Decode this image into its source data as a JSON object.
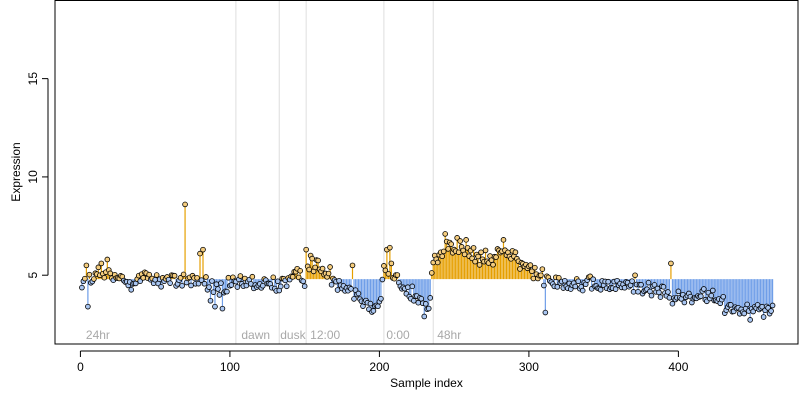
{
  "chart_data": {
    "type": "scatter",
    "xlabel": "Sample index",
    "ylabel": "Expression",
    "xlim": [
      -17,
      480
    ],
    "ylim": [
      1.5,
      19
    ],
    "x_ticks": [
      0,
      100,
      200,
      300,
      400
    ],
    "y_ticks": [
      5,
      10,
      15
    ],
    "baseline": 4.8,
    "colors": {
      "above_segment": "#e69f00",
      "below_segment": "#6f9ee8",
      "above_point": "#f5cd7e",
      "below_point": "#a9c6f2",
      "point_edge": "#000000",
      "divider": "#dedede",
      "frame": "#000000",
      "region_label": "#a8a8a8"
    },
    "region_boundaries": [
      104,
      133,
      151,
      203,
      236
    ],
    "regions": [
      {
        "label": "24hr",
        "x": 3
      },
      {
        "label": "dawn",
        "x": 107
      },
      {
        "label": "dusk",
        "x": 133
      },
      {
        "label": "12:00",
        "x": 153
      },
      {
        "label": "0:00",
        "x": 204
      },
      {
        "label": "48hr",
        "x": 238
      }
    ],
    "anchors": [
      [
        1,
        4.6
      ],
      [
        15,
        5.0
      ],
      [
        30,
        4.7
      ],
      [
        45,
        4.9
      ],
      [
        60,
        4.7
      ],
      [
        75,
        4.8
      ],
      [
        85,
        4.5
      ],
      [
        95,
        4.2
      ],
      [
        103,
        4.5
      ],
      [
        110,
        4.6
      ],
      [
        120,
        4.5
      ],
      [
        130,
        4.5
      ],
      [
        140,
        4.8
      ],
      [
        150,
        5.0
      ],
      [
        155,
        5.7
      ],
      [
        165,
        5.0
      ],
      [
        175,
        4.6
      ],
      [
        185,
        4.1
      ],
      [
        190,
        3.6
      ],
      [
        200,
        3.5
      ],
      [
        203,
        5.4
      ],
      [
        210,
        5.0
      ],
      [
        215,
        4.3
      ],
      [
        225,
        3.9
      ],
      [
        233,
        3.2
      ],
      [
        236,
        5.8
      ],
      [
        245,
        6.5
      ],
      [
        255,
        6.3
      ],
      [
        265,
        5.9
      ],
      [
        275,
        5.7
      ],
      [
        282,
        6.4
      ],
      [
        290,
        5.8
      ],
      [
        300,
        5.3
      ],
      [
        310,
        5.0
      ],
      [
        320,
        4.7
      ],
      [
        330,
        4.6
      ],
      [
        340,
        4.4
      ],
      [
        350,
        4.5
      ],
      [
        360,
        4.4
      ],
      [
        370,
        4.6
      ],
      [
        380,
        4.3
      ],
      [
        390,
        4.1
      ],
      [
        400,
        3.8
      ],
      [
        410,
        3.9
      ],
      [
        420,
        3.9
      ],
      [
        430,
        3.5
      ],
      [
        440,
        3.3
      ],
      [
        450,
        3.3
      ],
      [
        462,
        3.3
      ]
    ],
    "spikes": [
      [
        4,
        5.5
      ],
      [
        5,
        3.4
      ],
      [
        12,
        5.4
      ],
      [
        14,
        5.6
      ],
      [
        18,
        5.8
      ],
      [
        70,
        8.6
      ],
      [
        80,
        6.1
      ],
      [
        82,
        6.3
      ],
      [
        87,
        3.7
      ],
      [
        90,
        3.4
      ],
      [
        95,
        3.3
      ],
      [
        151,
        6.3
      ],
      [
        154,
        6.0
      ],
      [
        182,
        5.5
      ],
      [
        205,
        6.3
      ],
      [
        207,
        6.4
      ],
      [
        230,
        2.9
      ],
      [
        237,
        6.0
      ],
      [
        244,
        7.1
      ],
      [
        252,
        6.9
      ],
      [
        258,
        6.8
      ],
      [
        283,
        6.8
      ],
      [
        311,
        3.1
      ],
      [
        395,
        5.6
      ],
      [
        417,
        4.3
      ]
    ],
    "n_points": 463,
    "noise_sd": 0.38
  }
}
